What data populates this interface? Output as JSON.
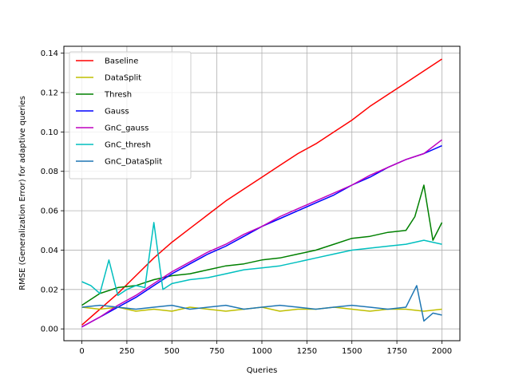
{
  "chart_data": {
    "type": "line",
    "title": "",
    "xlabel": "Queries",
    "ylabel": "RMSE (Generalization Error) for adaptive queries",
    "xlim": [
      -100,
      2100
    ],
    "ylim": [
      -0.006,
      0.1435
    ],
    "xticks": [
      0,
      250,
      500,
      750,
      1000,
      1250,
      1500,
      1750,
      2000
    ],
    "yticks": [
      0.0,
      0.02,
      0.04,
      0.06,
      0.08,
      0.1,
      0.12,
      0.14
    ],
    "ytick_labels": [
      "0.00",
      "0.02",
      "0.04",
      "0.06",
      "0.08",
      "0.10",
      "0.12",
      "0.14"
    ],
    "grid": true,
    "legend_position": "upper-left",
    "series": [
      {
        "name": "Baseline",
        "color": "#ff0000",
        "x": [
          0,
          100,
          200,
          300,
          400,
          500,
          600,
          700,
          800,
          900,
          1000,
          1100,
          1200,
          1300,
          1400,
          1500,
          1600,
          1700,
          1800,
          1900,
          2000
        ],
        "y": [
          0.002,
          0.01,
          0.018,
          0.027,
          0.036,
          0.044,
          0.051,
          0.058,
          0.065,
          0.071,
          0.077,
          0.083,
          0.089,
          0.094,
          0.1,
          0.106,
          0.113,
          0.119,
          0.125,
          0.131,
          0.137
        ]
      },
      {
        "name": "DataSplit",
        "color": "#bfbf00",
        "x": [
          0,
          100,
          200,
          300,
          400,
          500,
          600,
          700,
          800,
          900,
          1000,
          1100,
          1200,
          1300,
          1400,
          1500,
          1600,
          1700,
          1800,
          1900,
          2000
        ],
        "y": [
          0.011,
          0.01,
          0.011,
          0.009,
          0.01,
          0.009,
          0.011,
          0.01,
          0.009,
          0.01,
          0.011,
          0.009,
          0.01,
          0.01,
          0.011,
          0.01,
          0.009,
          0.01,
          0.01,
          0.009,
          0.01
        ]
      },
      {
        "name": "Thresh",
        "color": "#008000",
        "x": [
          0,
          100,
          200,
          300,
          400,
          500,
          600,
          700,
          800,
          900,
          1000,
          1100,
          1200,
          1300,
          1400,
          1500,
          1600,
          1700,
          1800,
          1850,
          1900,
          1950,
          2000
        ],
        "y": [
          0.012,
          0.018,
          0.021,
          0.022,
          0.025,
          0.027,
          0.028,
          0.03,
          0.032,
          0.033,
          0.035,
          0.036,
          0.038,
          0.04,
          0.043,
          0.046,
          0.047,
          0.049,
          0.05,
          0.057,
          0.073,
          0.045,
          0.054
        ]
      },
      {
        "name": "Gauss",
        "color": "#0000ff",
        "x": [
          0,
          100,
          200,
          300,
          400,
          500,
          600,
          700,
          800,
          900,
          1000,
          1100,
          1200,
          1300,
          1400,
          1500,
          1600,
          1700,
          1800,
          1900,
          2000
        ],
        "y": [
          0.001,
          0.006,
          0.011,
          0.016,
          0.022,
          0.028,
          0.033,
          0.038,
          0.042,
          0.047,
          0.052,
          0.056,
          0.06,
          0.064,
          0.068,
          0.073,
          0.077,
          0.082,
          0.086,
          0.089,
          0.093
        ]
      },
      {
        "name": "GnC_gauss",
        "color": "#bf00bf",
        "x": [
          0,
          100,
          200,
          300,
          400,
          500,
          600,
          700,
          800,
          900,
          1000,
          1100,
          1200,
          1300,
          1400,
          1500,
          1600,
          1700,
          1800,
          1900,
          2000
        ],
        "y": [
          0.001,
          0.006,
          0.012,
          0.017,
          0.023,
          0.029,
          0.034,
          0.039,
          0.043,
          0.048,
          0.052,
          0.057,
          0.061,
          0.065,
          0.069,
          0.073,
          0.078,
          0.082,
          0.086,
          0.089,
          0.096
        ]
      },
      {
        "name": "GnC_thresh",
        "color": "#00bfbf",
        "x": [
          0,
          50,
          100,
          150,
          200,
          250,
          300,
          350,
          400,
          450,
          500,
          600,
          700,
          800,
          900,
          1000,
          1100,
          1200,
          1300,
          1400,
          1500,
          1600,
          1700,
          1800,
          1900,
          2000
        ],
        "y": [
          0.024,
          0.022,
          0.018,
          0.035,
          0.017,
          0.02,
          0.022,
          0.021,
          0.054,
          0.02,
          0.023,
          0.025,
          0.026,
          0.028,
          0.03,
          0.031,
          0.032,
          0.034,
          0.036,
          0.038,
          0.04,
          0.041,
          0.042,
          0.043,
          0.045,
          0.043
        ]
      },
      {
        "name": "GnC_DataSplit",
        "color": "#1f77b4",
        "x": [
          0,
          100,
          200,
          300,
          400,
          500,
          600,
          700,
          800,
          900,
          1000,
          1100,
          1200,
          1300,
          1400,
          1500,
          1600,
          1700,
          1800,
          1860,
          1900,
          1950,
          2000
        ],
        "y": [
          0.011,
          0.012,
          0.011,
          0.01,
          0.011,
          0.012,
          0.01,
          0.011,
          0.012,
          0.01,
          0.011,
          0.012,
          0.011,
          0.01,
          0.011,
          0.012,
          0.011,
          0.01,
          0.011,
          0.022,
          0.004,
          0.008,
          0.007
        ]
      }
    ]
  }
}
